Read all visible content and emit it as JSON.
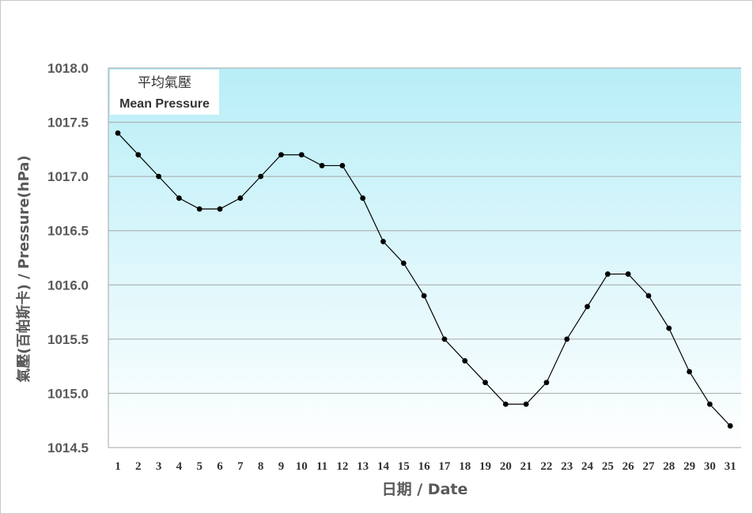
{
  "chart_data": {
    "type": "line",
    "title": "平均氣壓",
    "subtitle": "Mean Pressure",
    "xlabel": "日期 / Date",
    "ylabel": "氣壓(百帕斯卡) / Pressure(hPa)",
    "ylim": [
      1014.5,
      1018.0
    ],
    "y_ticks": [
      "1014.5",
      "1015.0",
      "1015.5",
      "1016.0",
      "1016.5",
      "1017.0",
      "1017.5",
      "1018.0"
    ],
    "y_tick_values": [
      1014.5,
      1015.0,
      1015.5,
      1016.0,
      1016.5,
      1017.0,
      1017.5,
      1018.0
    ],
    "categories": [
      "1",
      "2",
      "3",
      "4",
      "5",
      "6",
      "7",
      "8",
      "9",
      "10",
      "11",
      "12",
      "13",
      "14",
      "15",
      "16",
      "17",
      "18",
      "19",
      "20",
      "21",
      "22",
      "23",
      "24",
      "25",
      "26",
      "27",
      "28",
      "29",
      "30",
      "31"
    ],
    "values": [
      1017.4,
      1017.2,
      1017.0,
      1016.8,
      1016.7,
      1016.7,
      1016.8,
      1017.0,
      1017.2,
      1017.2,
      1017.1,
      1017.1,
      1016.8,
      1016.4,
      1016.2,
      1015.9,
      1015.5,
      1015.3,
      1015.1,
      1014.9,
      1014.9,
      1015.1,
      1015.5,
      1015.8,
      1016.1,
      1016.1,
      1015.9,
      1015.6,
      1015.2,
      1014.9,
      1014.7
    ],
    "grid": true,
    "colors": {
      "background_top": "#b8eef7",
      "background_bottom": "#ffffff",
      "line": "#000000",
      "marker": "#000000",
      "grid": "#a6a6a6"
    }
  }
}
